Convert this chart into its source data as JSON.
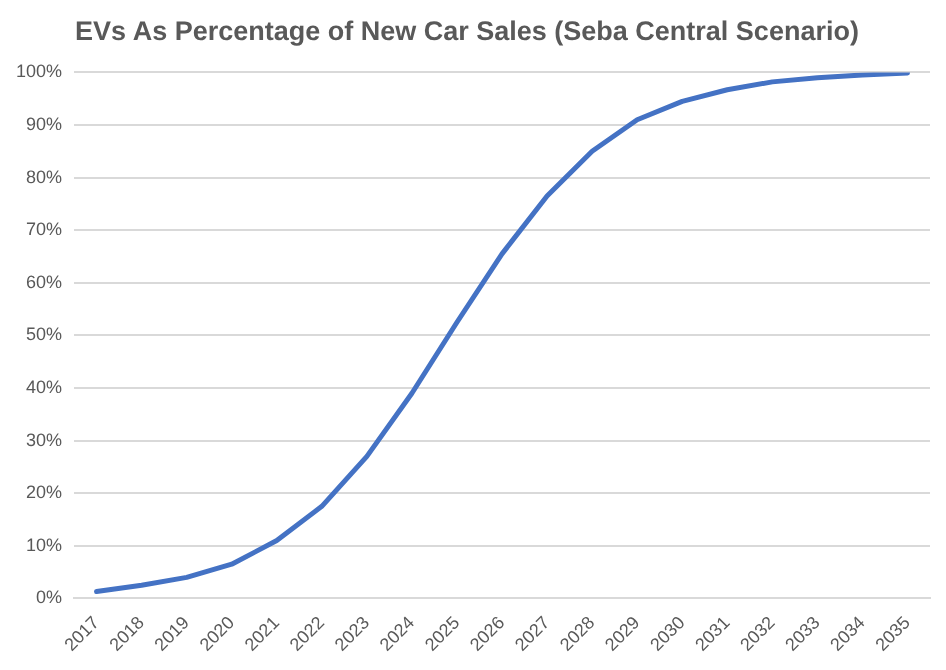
{
  "chart_data": {
    "type": "line",
    "title": "EVs As Percentage of New Car Sales (Seba Central Scenario)",
    "categories": [
      "2017",
      "2018",
      "2019",
      "2020",
      "2021",
      "2022",
      "2023",
      "2024",
      "2025",
      "2026",
      "2027",
      "2028",
      "2029",
      "2030",
      "2031",
      "2032",
      "2033",
      "2034",
      "2035"
    ],
    "series": [
      {
        "color": "#4472c4",
        "values": [
          1.3,
          2.5,
          4,
          6.5,
          11,
          17.5,
          27,
          39,
          52.5,
          65.5,
          76.5,
          85,
          91,
          94.5,
          96.7,
          98.2,
          99,
          99.5,
          99.9
        ]
      }
    ],
    "ylim": [
      0,
      100
    ],
    "yticks": [
      {
        "value": 0,
        "label": "0%"
      },
      {
        "value": 10,
        "label": "10%"
      },
      {
        "value": 20,
        "label": "20%"
      },
      {
        "value": 30,
        "label": "30%"
      },
      {
        "value": 40,
        "label": "40%"
      },
      {
        "value": 50,
        "label": "50%"
      },
      {
        "value": 60,
        "label": "60%"
      },
      {
        "value": 70,
        "label": "70%"
      },
      {
        "value": 80,
        "label": "80%"
      },
      {
        "value": 90,
        "label": "90%"
      },
      {
        "value": 100,
        "label": "100%"
      }
    ],
    "grid": "y",
    "legend": false,
    "marker": "none",
    "line_style": "solid"
  }
}
